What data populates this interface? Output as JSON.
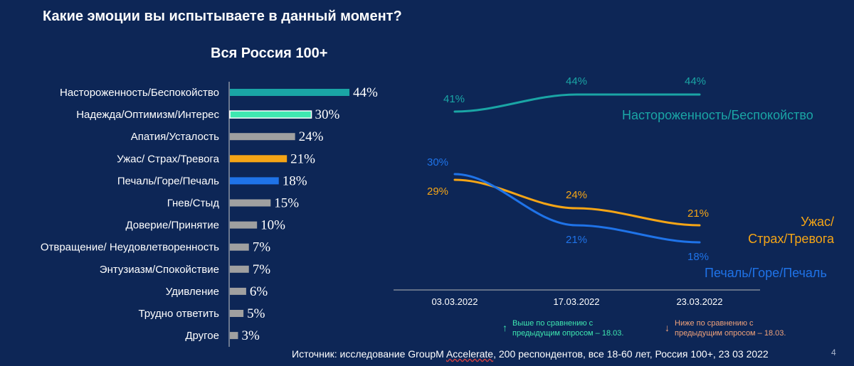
{
  "title": "Какие эмоции вы испытываете в данный момент?",
  "subtitle": "Вся Россия 100+",
  "colors": {
    "background": "#0d2656",
    "teal": "#1aa5a5",
    "mint": "#3ee8b0",
    "gray": "#a0a0a0",
    "orange": "#f5a516",
    "blue": "#1f73e8",
    "up": "#3ee8b0",
    "down": "#f0a27a"
  },
  "chart_data": [
    {
      "type": "bar",
      "orientation": "horizontal",
      "title": "Вся Россия 100+",
      "categories": [
        "Настороженность/Беспокойство",
        "Надежда/Оптимизм/Интерес",
        "Апатия/Усталость",
        "Ужас/ Страх/Тревога",
        "Печаль/Горе/Печаль",
        "Гнев/Стыд",
        "Доверие/Принятие",
        "Отвращение/ Неудовлетворенность",
        "Энтузиазм/Спокойствие",
        "Удивление",
        "Трудно ответить",
        "Другое"
      ],
      "values": [
        44,
        30,
        24,
        21,
        18,
        15,
        10,
        7,
        7,
        6,
        5,
        3
      ],
      "value_labels": [
        "44%",
        "30%",
        "24%",
        "21%",
        "18%",
        "15%",
        "10%",
        "7%",
        "7%",
        "6%",
        "5%",
        "3%"
      ],
      "bar_colors": [
        "teal",
        "mint",
        "gray",
        "orange",
        "blue",
        "gray",
        "gray",
        "gray",
        "gray",
        "gray",
        "gray",
        "gray"
      ],
      "outlined": [
        false,
        true,
        false,
        false,
        false,
        false,
        false,
        false,
        false,
        false,
        false,
        false
      ]
    },
    {
      "type": "line",
      "categories": [
        "03.03.2022",
        "17.03.2022",
        "23.03.2022"
      ],
      "ylim": [
        10,
        50
      ],
      "series": [
        {
          "name": "Настороженность/Беспокойство",
          "values": [
            41,
            44,
            44
          ],
          "labels": [
            "41%",
            "44%",
            "44%"
          ],
          "color": "teal"
        },
        {
          "name": "Ужас/ Страх/Тревога",
          "name_lines": [
            "Ужас/",
            "Страх/Тревога"
          ],
          "values": [
            29,
            24,
            21
          ],
          "labels": [
            "29%",
            "24%",
            "21%"
          ],
          "color": "orange"
        },
        {
          "name": "Печаль/Горе/Печаль",
          "values": [
            30,
            21,
            18
          ],
          "labels": [
            "30%",
            "21%",
            "18%"
          ],
          "color": "blue"
        }
      ]
    }
  ],
  "legend": {
    "up": {
      "arrow": "↑",
      "lines": [
        "Выше по сравнению с",
        "предыдущим опросом – 18.03."
      ]
    },
    "down": {
      "arrow": "↓",
      "lines": [
        "Ниже по сравнению с",
        "предыдущим опросом – 18.03."
      ]
    }
  },
  "source": {
    "prefix": "Источник: исследование GroupM ",
    "accent": "Accelerate",
    "suffix": ", 200 респондентов, все 18-60 лет, Россия 100+, 23 03 2022"
  },
  "page_number": "4"
}
